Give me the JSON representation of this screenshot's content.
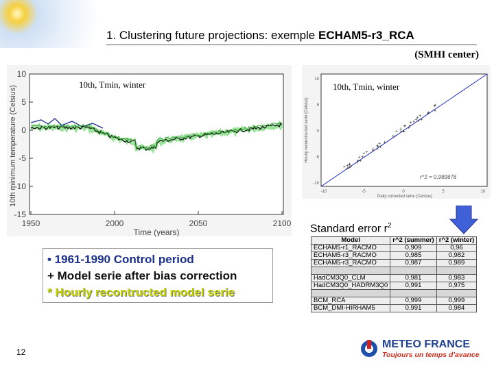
{
  "header": {
    "title_prefix": "1. Clustering future projections: exemple ",
    "title_bold": "ECHAM5-r3_RCA",
    "center": "(SMHI center)"
  },
  "left_plot": {
    "annotation": "10th, Tmin, winter",
    "y_label": "10th minimum temperature (Celsius)",
    "x_label": "Time (years)",
    "y_ticks": [
      "10",
      "5",
      "0",
      "-5",
      "-10",
      "-15"
    ],
    "x_ticks": [
      "1950",
      "2000",
      "2050",
      "2100"
    ]
  },
  "right_plot": {
    "annotation": "10th, Tmin, winter",
    "y_label": "Hourly reconstructed serie (Celsius)",
    "x_label": "Daily corrected serie (Celsius)",
    "fit": "r^2 = 0.989878",
    "x_ticks": [
      "-10",
      "-5",
      "0",
      "5",
      "10"
    ],
    "y_ticks": [
      "10",
      "5",
      "0",
      "-5",
      "-10"
    ]
  },
  "standard_error": {
    "text": "Standard error r",
    "sup": "2"
  },
  "legend": [
    "• 1961-1990 Control period",
    "+ Model serie after bias correction",
    "*  Hourly recontructed model serie"
  ],
  "table": {
    "header": [
      "Model",
      "r^2 (summer)",
      "r^2 (winter)"
    ],
    "rows": [
      [
        "ECHAM5-r1_RACMO",
        "0,909",
        "0,96"
      ],
      [
        "ECHAM5-r3_RACMO",
        "0,985",
        "0,982"
      ],
      [
        "ECHAM5-r3_RACMO",
        "0,987",
        "0,989"
      ],
      [
        "",
        "",
        ""
      ],
      [
        "HadCM3Q0_CLM",
        "0,981",
        "0,983"
      ],
      [
        "HadCM3Q0_HADRM3Q0",
        "0,991",
        "0,975"
      ],
      [
        "",
        "",
        ""
      ],
      [
        "BCM_RCA",
        "0,999",
        "0,999"
      ],
      [
        "BCM_DMI-HIRHAM5",
        "0,991",
        "0,984"
      ]
    ]
  },
  "footer": {
    "page": "12",
    "logo": "METEO FRANCE",
    "tagline": "Toujours un temps d'avance"
  }
}
